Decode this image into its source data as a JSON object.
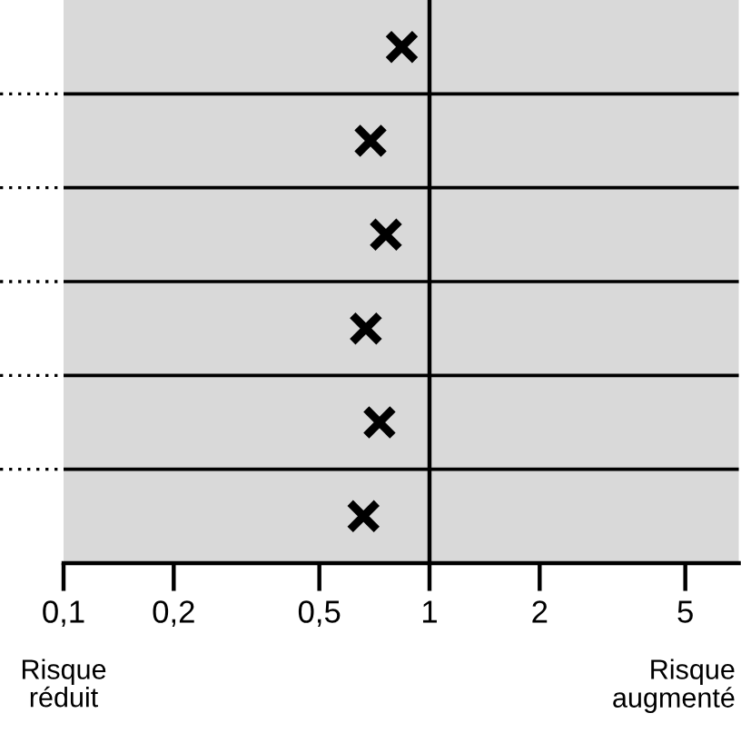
{
  "chart_data": {
    "type": "scatter",
    "orientation": "horizontal",
    "categories": [
      null,
      null,
      null,
      null,
      null,
      null
    ],
    "values": [
      0.84,
      0.69,
      0.76,
      0.67,
      0.73,
      0.66
    ],
    "color": "#000000",
    "marker": "cross",
    "log": "x",
    "grid": "y",
    "xlim": [
      0.1,
      7
    ],
    "xticks": [
      {
        "value": 0.1,
        "label": "0,1"
      },
      {
        "value": 0.2,
        "label": "0,2"
      },
      {
        "value": 0.5,
        "label": "0,5"
      },
      {
        "value": 1,
        "label": "1"
      },
      {
        "value": 2,
        "label": "2"
      },
      {
        "value": 5,
        "label": "5"
      }
    ],
    "ref_lines": [
      {
        "axis": "x",
        "value": 1,
        "color": "#000000"
      }
    ],
    "annotations": [
      "Risque\nréduit",
      "Risque\naugmenté"
    ],
    "tick_labels": "x"
  }
}
